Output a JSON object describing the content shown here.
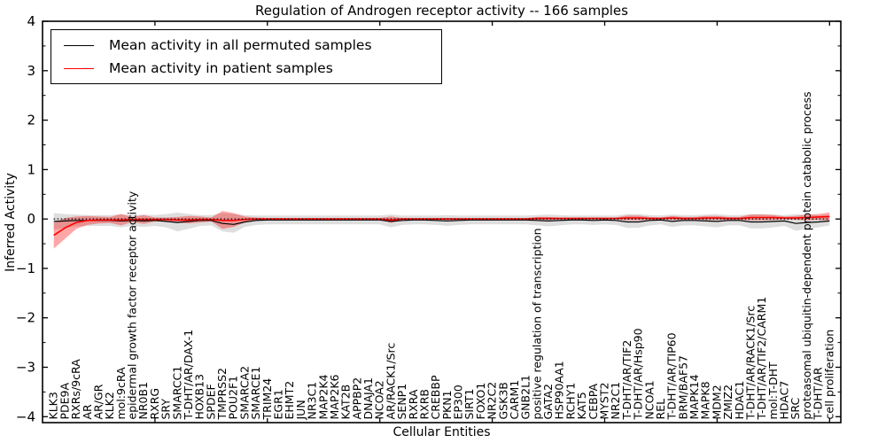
{
  "figure": {
    "title": "Regulation of Androgen receptor activity -- 166 samples",
    "xlabel": "Cellular Entities",
    "ylabel": "Inferred Activity",
    "sample_count": "166"
  },
  "legend": {
    "items": [
      {
        "label": "Mean activity in all permuted samples",
        "color": "#000000"
      },
      {
        "label": "Mean activity in patient samples",
        "color": "#ff0000"
      }
    ]
  },
  "chart_data": {
    "type": "line",
    "title": "Regulation of Androgen receptor activity -- 166 samples",
    "xlabel": "Cellular Entities",
    "ylabel": "Inferred Activity",
    "ylim": [
      -4,
      4
    ],
    "yticks": [
      -4,
      -3,
      -2,
      -1,
      0,
      1,
      2,
      3,
      4
    ],
    "grid": false,
    "legend_position": "upper left",
    "reference_line": {
      "y": 0,
      "style": "dotted",
      "color": "#000000"
    },
    "colors": {
      "permuted_line": "#000000",
      "patient_line": "#ff0000",
      "permuted_band": "rgba(0,0,0,0.13)",
      "patient_band": "rgba(255,0,0,0.35)"
    },
    "categories": [
      "KLK3",
      "PDE9A",
      "RXRs/9cRA",
      "AR",
      "AR/GR",
      "KLK2",
      "mol:9cRA",
      "epidermal growth factor receptor activity",
      "NR0B1",
      "RXRG",
      "SRY",
      "SMARCC1",
      "T-DHT/AR/DAX-1",
      "HOXB13",
      "SPDEF",
      "TMPRSS2",
      "POU2F1",
      "SMARCA2",
      "SMARCE1",
      "TRIM24",
      "EGR1",
      "EHMT2",
      "JUN",
      "NR3C1",
      "MAP2K4",
      "MAP2K6",
      "KAT2B",
      "APPBP2",
      "DNAJA1",
      "NCOA2",
      "AR/RACK1/Src",
      "SENP1",
      "RXRA",
      "RXRB",
      "CREBBP",
      "PKN1",
      "EP300",
      "SIRT1",
      "FOXO1",
      "NR2C2",
      "GSK3B",
      "CARM1",
      "GNB2L1",
      "positive regulation of transcription",
      "GATA2",
      "HSP90AA1",
      "RCHY1",
      "KAT5",
      "CEBPA",
      "MYST2",
      "NR2C1",
      "T-DHT/AR/TIF2",
      "T-DHT/AR/Hsp90",
      "NCOA1",
      "REL",
      "T-DHT/AR/TIP60",
      "BRM/BAF57",
      "MAPK14",
      "MAPK8",
      "MDM2",
      "ZMIZ2",
      "HDAC1",
      "T-DHT/AR/RACK1/Src",
      "T-DHT/AR/TIF2/CARM1",
      "mol:T-DHT",
      "HDAC7",
      "SRC",
      "proteasomal ubiquitin-dependent protein catabolic process",
      "T-DHT/AR",
      "cell proliferation"
    ],
    "series": [
      {
        "name": "Mean activity in all permuted samples",
        "color": "#000000",
        "values": [
          -0.05,
          -0.04,
          -0.03,
          -0.03,
          -0.03,
          -0.03,
          -0.04,
          -0.03,
          -0.04,
          -0.03,
          -0.05,
          -0.07,
          -0.05,
          -0.03,
          -0.03,
          -0.09,
          -0.11,
          -0.06,
          -0.03,
          -0.02,
          -0.02,
          -0.02,
          -0.02,
          -0.02,
          -0.02,
          -0.02,
          -0.02,
          -0.02,
          -0.02,
          -0.02,
          -0.05,
          -0.03,
          -0.02,
          -0.02,
          -0.03,
          -0.04,
          -0.03,
          -0.02,
          -0.02,
          -0.02,
          -0.02,
          -0.02,
          -0.02,
          -0.03,
          -0.04,
          -0.03,
          -0.02,
          -0.02,
          -0.03,
          -0.02,
          -0.03,
          -0.06,
          -0.06,
          -0.03,
          -0.02,
          -0.05,
          -0.03,
          -0.03,
          -0.04,
          -0.05,
          -0.03,
          -0.03,
          -0.06,
          -0.06,
          -0.05,
          -0.04,
          -0.09,
          -0.07,
          -0.06,
          -0.04
        ],
        "band_upper": [
          0.12,
          0.1,
          0.09,
          0.08,
          0.08,
          0.08,
          0.1,
          0.08,
          0.09,
          0.08,
          0.1,
          0.13,
          0.1,
          0.08,
          0.08,
          0.12,
          0.1,
          0.08,
          0.07,
          0.07,
          0.07,
          0.07,
          0.07,
          0.07,
          0.07,
          0.07,
          0.07,
          0.07,
          0.07,
          0.07,
          0.09,
          0.07,
          0.07,
          0.07,
          0.07,
          0.08,
          0.07,
          0.07,
          0.07,
          0.07,
          0.07,
          0.07,
          0.07,
          0.08,
          0.09,
          0.08,
          0.07,
          0.07,
          0.07,
          0.07,
          0.07,
          0.1,
          0.1,
          0.08,
          0.07,
          0.09,
          0.08,
          0.08,
          0.09,
          0.1,
          0.08,
          0.08,
          0.1,
          0.1,
          0.09,
          0.08,
          0.1,
          0.09,
          0.08,
          0.08
        ],
        "band_lower": [
          -0.22,
          -0.18,
          -0.15,
          -0.14,
          -0.14,
          -0.14,
          -0.17,
          -0.14,
          -0.16,
          -0.14,
          -0.17,
          -0.25,
          -0.2,
          -0.14,
          -0.13,
          -0.25,
          -0.28,
          -0.16,
          -0.12,
          -0.11,
          -0.11,
          -0.11,
          -0.11,
          -0.11,
          -0.11,
          -0.11,
          -0.11,
          -0.11,
          -0.11,
          -0.11,
          -0.17,
          -0.12,
          -0.11,
          -0.11,
          -0.12,
          -0.14,
          -0.12,
          -0.11,
          -0.11,
          -0.11,
          -0.11,
          -0.11,
          -0.11,
          -0.13,
          -0.15,
          -0.13,
          -0.11,
          -0.11,
          -0.12,
          -0.11,
          -0.12,
          -0.18,
          -0.18,
          -0.13,
          -0.11,
          -0.16,
          -0.13,
          -0.13,
          -0.15,
          -0.17,
          -0.13,
          -0.13,
          -0.19,
          -0.19,
          -0.17,
          -0.14,
          -0.24,
          -0.2,
          -0.17,
          -0.13
        ]
      },
      {
        "name": "Mean activity in patient samples",
        "color": "#ff0000",
        "values": [
          -0.33,
          -0.18,
          -0.07,
          -0.03,
          -0.02,
          -0.02,
          -0.02,
          -0.01,
          -0.01,
          -0.01,
          -0.01,
          -0.02,
          -0.02,
          -0.01,
          -0.01,
          -0.03,
          -0.03,
          -0.01,
          0.0,
          0.0,
          0.0,
          0.0,
          0.0,
          0.0,
          0.0,
          0.0,
          0.0,
          0.0,
          0.0,
          0.0,
          -0.02,
          0.0,
          0.0,
          0.0,
          0.0,
          0.0,
          0.0,
          0.0,
          0.0,
          0.0,
          0.0,
          0.0,
          0.0,
          0.01,
          0.01,
          0.01,
          0.01,
          0.01,
          0.01,
          0.01,
          0.01,
          0.02,
          0.02,
          0.01,
          0.01,
          0.02,
          0.01,
          0.01,
          0.02,
          0.02,
          0.01,
          0.01,
          0.03,
          0.03,
          0.03,
          0.02,
          0.02,
          0.03,
          0.04,
          0.05
        ],
        "band_upper": [
          -0.08,
          0.02,
          0.05,
          0.06,
          0.05,
          0.04,
          0.1,
          0.04,
          0.08,
          0.03,
          0.03,
          0.04,
          0.06,
          0.05,
          0.03,
          0.16,
          0.12,
          0.05,
          0.03,
          0.02,
          0.02,
          0.02,
          0.02,
          0.02,
          0.02,
          0.02,
          0.02,
          0.02,
          0.02,
          0.02,
          0.05,
          0.02,
          0.02,
          0.02,
          0.02,
          0.02,
          0.02,
          0.02,
          0.02,
          0.02,
          0.02,
          0.02,
          0.02,
          0.04,
          0.04,
          0.03,
          0.03,
          0.03,
          0.03,
          0.03,
          0.03,
          0.07,
          0.07,
          0.04,
          0.03,
          0.06,
          0.04,
          0.04,
          0.06,
          0.06,
          0.04,
          0.04,
          0.09,
          0.09,
          0.08,
          0.05,
          0.06,
          0.09,
          0.1,
          0.13
        ],
        "band_lower": [
          -0.6,
          -0.4,
          -0.2,
          -0.12,
          -0.09,
          -0.08,
          -0.13,
          -0.06,
          -0.1,
          -0.05,
          -0.05,
          -0.07,
          -0.09,
          -0.07,
          -0.05,
          -0.2,
          -0.16,
          -0.07,
          -0.03,
          -0.02,
          -0.02,
          -0.02,
          -0.02,
          -0.02,
          -0.02,
          -0.02,
          -0.02,
          -0.02,
          -0.02,
          -0.02,
          -0.08,
          -0.02,
          -0.02,
          -0.02,
          -0.02,
          -0.02,
          -0.02,
          -0.02,
          -0.02,
          -0.02,
          -0.02,
          -0.02,
          -0.02,
          -0.02,
          -0.02,
          -0.01,
          -0.01,
          -0.01,
          -0.01,
          -0.01,
          -0.01,
          -0.03,
          -0.03,
          -0.02,
          -0.01,
          -0.02,
          -0.02,
          -0.02,
          -0.02,
          -0.02,
          -0.02,
          -0.02,
          -0.03,
          -0.03,
          -0.02,
          -0.01,
          -0.02,
          -0.03,
          -0.02,
          -0.03
        ]
      }
    ]
  }
}
